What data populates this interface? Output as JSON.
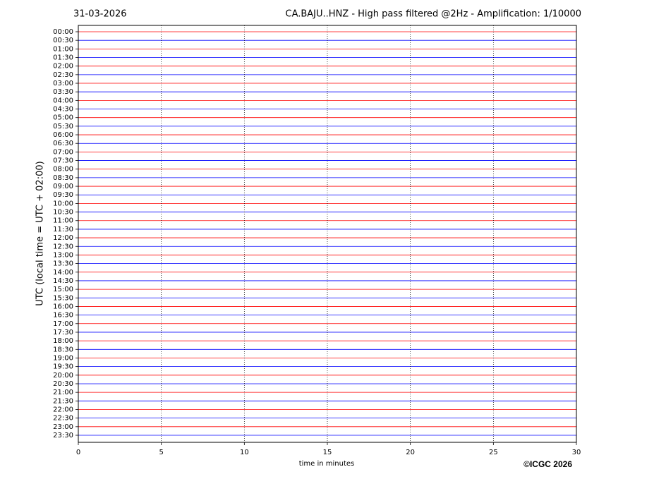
{
  "chart_data": {
    "type": "helicorder",
    "date": "31-03-2026",
    "title": "CA.BAJU..HNZ - High pass filtered @2Hz - Amplification: 1/10000",
    "xlabel": "time in minutes",
    "ylabel": "UTC (local time = UTC + 02:00)",
    "copyright": "©ICGC 2026",
    "categories": [
      "00:00",
      "00:30",
      "01:00",
      "01:30",
      "02:00",
      "02:30",
      "03:00",
      "03:30",
      "04:00",
      "04:30",
      "05:00",
      "05:30",
      "06:00",
      "06:30",
      "07:00",
      "07:30",
      "08:00",
      "08:30",
      "09:00",
      "09:30",
      "10:00",
      "10:30",
      "11:00",
      "11:30",
      "12:00",
      "12:30",
      "13:00",
      "13:30",
      "14:00",
      "14:30",
      "15:00",
      "15:30",
      "16:00",
      "16:30",
      "17:00",
      "17:30",
      "18:00",
      "18:30",
      "19:00",
      "19:30",
      "20:00",
      "20:30",
      "21:00",
      "21:30",
      "22:00",
      "22:30",
      "23:00",
      "23:30"
    ],
    "colors": [
      "#ff0000",
      "#0000ff"
    ],
    "xlim": [
      0,
      30
    ],
    "xticks": [
      0,
      5,
      10,
      15,
      20,
      25,
      30
    ],
    "grid": true
  }
}
